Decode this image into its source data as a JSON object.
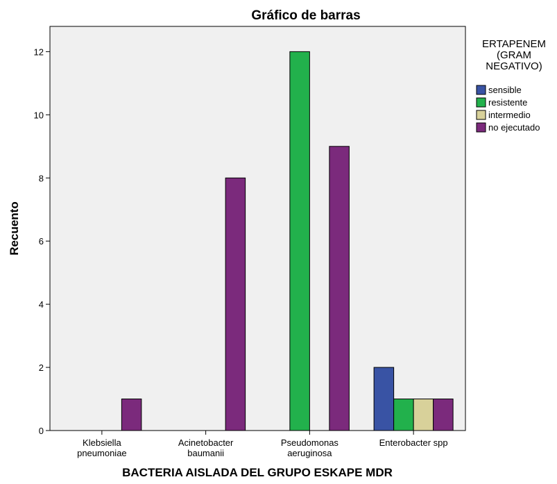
{
  "chart_data": {
    "type": "bar",
    "title": "Gráfico de barras",
    "xlabel": "BACTERIA AISLADA DEL GRUPO ESKAPE MDR",
    "ylabel": "Recuento",
    "ylim": [
      0,
      12.8
    ],
    "yticks": [
      0,
      2,
      4,
      6,
      8,
      10,
      12
    ],
    "grid": false,
    "legend_position": "right",
    "legend_title": [
      "ERTAPENEM",
      "(GRAM",
      "NEGATIVO)"
    ],
    "categories": [
      [
        "Klebsiella",
        "pneumoniae"
      ],
      [
        "Acinetobacter",
        "baumanii"
      ],
      [
        "Pseudomonas",
        "aeruginosa"
      ],
      [
        "Enterobacter spp"
      ]
    ],
    "series": [
      {
        "name": "sensible",
        "color": "#3953a4",
        "values": [
          0,
          0,
          0,
          2
        ]
      },
      {
        "name": "resistente",
        "color": "#22b14c",
        "values": [
          0,
          0,
          12,
          1
        ]
      },
      {
        "name": "intermedio",
        "color": "#d8d19a",
        "values": [
          0,
          0,
          0,
          1
        ]
      },
      {
        "name": "no ejecutado",
        "color": "#7b2a7c",
        "values": [
          1,
          8,
          9,
          1
        ]
      }
    ],
    "plot_background": "#f0f0f0"
  }
}
